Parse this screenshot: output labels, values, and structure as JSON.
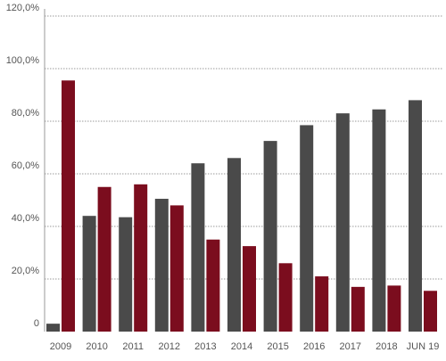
{
  "chart_data": {
    "type": "bar",
    "categories": [
      "2009",
      "2010",
      "2011",
      "2012",
      "2013",
      "2014",
      "2015",
      "2016",
      "2017",
      "2018",
      "JUN 19"
    ],
    "series": [
      {
        "color": "#4a4a4a",
        "values": [
          3.0,
          44.0,
          43.5,
          50.5,
          64.0,
          66.0,
          72.5,
          78.5,
          83.0,
          84.5,
          88.0
        ]
      },
      {
        "color": "#7b0d1e",
        "values": [
          95.5,
          55.0,
          56.0,
          48.0,
          35.0,
          32.5,
          26.0,
          21.0,
          17.0,
          17.5,
          15.5
        ]
      }
    ],
    "yticks": [
      0,
      20,
      40,
      60,
      80,
      100,
      120
    ],
    "ytick_labels": [
      "0",
      "20,0%",
      "40,0%",
      "60,0%",
      "80,0%",
      "100,0%",
      "120,0%"
    ],
    "ylim": [
      0,
      120
    ],
    "grid": true,
    "legend": false,
    "title": "",
    "xlabel": "",
    "ylabel": ""
  }
}
